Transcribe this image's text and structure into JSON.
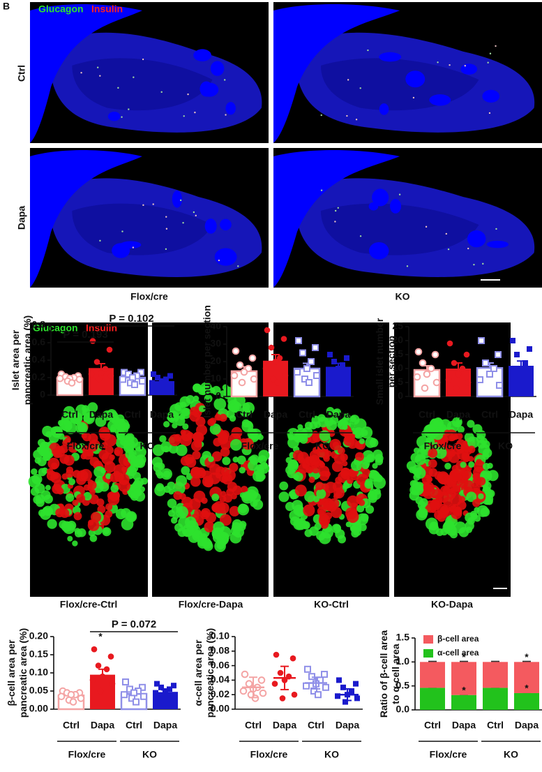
{
  "figure": {
    "panel_label": "B",
    "sections": {
      "stain": [
        "Glucagon",
        "Insulin"
      ],
      "rows": [
        "Ctrl",
        "Dapa"
      ],
      "columns": [
        "Flox/cre",
        "KO"
      ]
    },
    "islets": {
      "stain": [
        "Glucagon",
        "Insulin"
      ],
      "labels": [
        "Flox/cre-Ctrl",
        "Flox/cre-Dapa",
        "KO-Ctrl",
        "KO-Dapa"
      ]
    }
  },
  "chart_data": [
    {
      "type": "bar",
      "ylabel": [
        "Islet area per",
        "pancreatic area (%)"
      ],
      "categories": [
        "Ctrl",
        "Dapa",
        "Ctrl",
        "Dapa"
      ],
      "groups": [
        "Flox/cre",
        "KO"
      ],
      "values": [
        0.19,
        0.31,
        0.2,
        0.16
      ],
      "errors": [
        0.02,
        0.05,
        0.025,
        0.02
      ],
      "points": [
        [
          0.24,
          0.22,
          0.21,
          0.2,
          0.19,
          0.19,
          0.18,
          0.16,
          0.14
        ],
        [
          0.62,
          0.52,
          0.38,
          0.3,
          0.25,
          0.24,
          0.22,
          0.18
        ],
        [
          0.26,
          0.26,
          0.24,
          0.22,
          0.2,
          0.18,
          0.16,
          0.14,
          0.12
        ],
        [
          0.24,
          0.22,
          0.2,
          0.18,
          0.16,
          0.14,
          0.12,
          0.1
        ]
      ],
      "colors": [
        "#f4a4a4",
        "#e8191f",
        "#8f8fe8",
        "#1a1acc"
      ],
      "filled": [
        false,
        true,
        false,
        true
      ],
      "markers": [
        "circle",
        "circle",
        "square",
        "square"
      ],
      "ylim": [
        0,
        0.8
      ],
      "yticks": [
        0,
        0.2,
        0.4,
        0.6,
        0.8
      ],
      "annotations": [
        "P = 0.193",
        "P = 0.102"
      ]
    },
    {
      "type": "bar",
      "ylabel": [
        "Islet number per section"
      ],
      "categories": [
        "Ctrl",
        "Dapa",
        "Ctrl",
        "Dapa"
      ],
      "groups": [
        "Flox/cre",
        "KO"
      ],
      "values": [
        14.5,
        20.5,
        16,
        17
      ],
      "errors": [
        2.5,
        3.5,
        3,
        2
      ],
      "points": [
        [
          26,
          22,
          18,
          16,
          14,
          12,
          10,
          8
        ],
        [
          38,
          33,
          28,
          22,
          20,
          16,
          12,
          10,
          8
        ],
        [
          32,
          28,
          25,
          20,
          16,
          14,
          12,
          10,
          8
        ],
        [
          24,
          22,
          20,
          18,
          16,
          14,
          12,
          10
        ]
      ],
      "colors": [
        "#f4a4a4",
        "#e8191f",
        "#8f8fe8",
        "#1a1acc"
      ],
      "filled": [
        false,
        true,
        false,
        true
      ],
      "markers": [
        "circle",
        "circle",
        "square",
        "square"
      ],
      "ylim": [
        0,
        40
      ],
      "yticks": [
        0,
        10,
        20,
        30,
        40
      ]
    },
    {
      "type": "bar",
      "ylabel": [
        "Small islet number",
        "per section"
      ],
      "categories": [
        "Ctrl",
        "Dapa",
        "Ctrl",
        "Dapa"
      ],
      "groups": [
        "Flox/cre",
        "KO"
      ],
      "values": [
        9.5,
        10,
        10.2,
        11
      ],
      "errors": [
        1.5,
        2,
        1.8,
        1.7
      ],
      "points": [
        [
          16,
          15,
          12,
          10,
          8,
          7,
          5,
          3
        ],
        [
          19,
          15,
          12,
          10,
          8,
          6,
          5,
          3
        ],
        [
          20,
          15,
          12,
          10,
          8,
          6,
          4
        ],
        [
          20,
          17,
          15,
          12,
          10,
          8,
          6,
          5
        ]
      ],
      "colors": [
        "#f4a4a4",
        "#e8191f",
        "#8f8fe8",
        "#1a1acc"
      ],
      "filled": [
        false,
        true,
        false,
        true
      ],
      "markers": [
        "circle",
        "circle",
        "square",
        "square"
      ],
      "ylim": [
        0,
        25
      ],
      "yticks": [
        0,
        5,
        10,
        15,
        20,
        25
      ]
    },
    {
      "type": "bar",
      "ylabel": [
        "β-cell area per",
        "pancreatic area (%)"
      ],
      "categories": [
        "Ctrl",
        "Dapa",
        "Ctrl",
        "Dapa"
      ],
      "groups": [
        "Flox/cre",
        "KO"
      ],
      "values": [
        0.038,
        0.095,
        0.042,
        0.047
      ],
      "errors": [
        0.004,
        0.015,
        0.006,
        0.006
      ],
      "points": [
        [
          0.05,
          0.045,
          0.045,
          0.04,
          0.04,
          0.035,
          0.03,
          0.025,
          0.02
        ],
        [
          0.165,
          0.145,
          0.12,
          0.11,
          0.09,
          0.08,
          0.07,
          0.05
        ],
        [
          0.075,
          0.06,
          0.055,
          0.05,
          0.045,
          0.04,
          0.035,
          0.03,
          0.02
        ],
        [
          0.07,
          0.065,
          0.06,
          0.055,
          0.05,
          0.045,
          0.04,
          0.03,
          0.025
        ]
      ],
      "colors": [
        "#f4a4a4",
        "#e8191f",
        "#8f8fe8",
        "#1a1acc"
      ],
      "filled": [
        false,
        true,
        false,
        true
      ],
      "markers": [
        "circle",
        "circle",
        "square",
        "square"
      ],
      "ylim": [
        0,
        0.2
      ],
      "yticks": [
        {
          "value": 0,
          "label": "0.00"
        },
        {
          "value": 0.05,
          "label": "0.05"
        },
        {
          "value": 0.1,
          "label": "0.10"
        },
        {
          "value": 0.15,
          "label": "0.15"
        },
        {
          "value": 0.2,
          "label": "0.20"
        }
      ],
      "annotations": [
        "*",
        "P = 0.072"
      ]
    },
    {
      "type": "dot",
      "ylabel": [
        "α-cell area per",
        "pancreatic area (%)"
      ],
      "categories": [
        "Ctrl",
        "Dapa",
        "Ctrl",
        "Dapa"
      ],
      "groups": [
        "Flox/cre",
        "KO"
      ],
      "values": [
        0.03,
        0.043,
        0.036,
        0.02
      ],
      "errors": [
        0.014,
        0.016,
        0.008,
        0.008
      ],
      "points": [
        [
          0.048,
          0.04,
          0.035,
          0.03,
          0.028,
          0.025,
          0.022,
          0.02,
          0.015
        ],
        [
          0.075,
          0.07,
          0.05,
          0.045,
          0.04,
          0.035,
          0.02,
          0.015
        ],
        [
          0.055,
          0.048,
          0.045,
          0.04,
          0.035,
          0.032,
          0.03,
          0.025,
          0.02
        ],
        [
          0.04,
          0.035,
          0.03,
          0.025,
          0.02,
          0.018,
          0.015,
          0.01
        ]
      ],
      "colors": [
        "#f4a4a4",
        "#e8191f",
        "#8f8fe8",
        "#1a1acc"
      ],
      "filled": [
        false,
        true,
        false,
        true
      ],
      "markers": [
        "circle",
        "circle",
        "square",
        "square"
      ],
      "ylim": [
        0,
        0.1
      ],
      "yticks": [
        {
          "value": 0,
          "label": "0.00"
        },
        {
          "value": 0.02,
          "label": "0.02"
        },
        {
          "value": 0.04,
          "label": "0.04"
        },
        {
          "value": 0.06,
          "label": "0.06"
        },
        {
          "value": 0.08,
          "label": "0.08"
        },
        {
          "value": 0.1,
          "label": "0.10"
        }
      ]
    },
    {
      "type": "stacked_bar",
      "ylabel": [
        "Ratio of β-cell area",
        "to α-cell area"
      ],
      "categories": [
        "Ctrl",
        "Dapa",
        "Ctrl",
        "Dapa"
      ],
      "groups": [
        "Flox/cre",
        "KO"
      ],
      "series": [
        {
          "name": "α-cell area",
          "color": "#22c21c",
          "values": [
            0.46,
            0.31,
            0.46,
            0.35
          ],
          "errors": [
            0.01,
            0.01,
            0.01,
            0.01
          ]
        },
        {
          "name": "β-cell area",
          "color": "#f45a5f",
          "values": [
            0.54,
            0.69,
            0.54,
            0.65
          ],
          "errors": [
            0.01,
            0.01,
            0.01,
            0.01
          ]
        }
      ],
      "ylim": [
        0,
        1.5
      ],
      "yticks": [
        {
          "value": 0,
          "label": "0.0"
        },
        {
          "value": 0.5,
          "label": "0.5"
        },
        {
          "value": 1,
          "label": "1.0"
        },
        {
          "value": 1.5,
          "label": "1.5"
        }
      ],
      "legend": "top-left",
      "annotations": [
        "*",
        "*",
        "*",
        "*"
      ]
    }
  ]
}
